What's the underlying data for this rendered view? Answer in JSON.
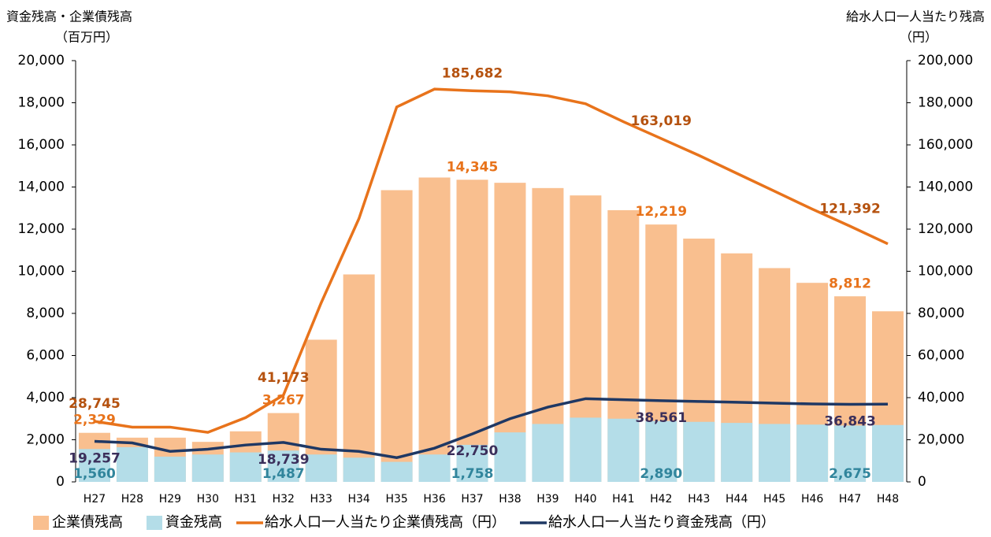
{
  "chart_data": {
    "type": "bar_line",
    "ylabel": "資金残高・企業債残高",
    "yunit": "（百万円）",
    "y2label": "給水人口一人当たり残高",
    "y2unit": "（円）",
    "categories": [
      "H27",
      "H28",
      "H29",
      "H30",
      "H31",
      "H32",
      "H33",
      "H34",
      "H35",
      "H36",
      "H37",
      "H38",
      "H39",
      "H40",
      "H41",
      "H42",
      "H43",
      "H44",
      "H45",
      "H46",
      "H47",
      "H48"
    ],
    "ylim": [
      0,
      20000
    ],
    "yticks": [
      0,
      {
        "value": 2000,
        "label": "2,000"
      },
      {
        "value": 4000,
        "label": "4,000"
      },
      {
        "value": 6000,
        "label": "6,000"
      },
      {
        "value": 8000,
        "label": "8,000"
      },
      {
        "value": 10000,
        "label": "10,000"
      },
      {
        "value": 12000,
        "label": "12,000"
      },
      {
        "value": 14000,
        "label": "14,000"
      },
      {
        "value": 16000,
        "label": "16,000"
      },
      {
        "value": 18000,
        "label": "18,000"
      },
      {
        "value": 20000,
        "label": "20,000"
      }
    ],
    "y2lim": [
      0,
      200000
    ],
    "y2ticks": [
      0,
      {
        "value": 20000,
        "label": "20,000"
      },
      {
        "value": 40000,
        "label": "40,000"
      },
      {
        "value": 60000,
        "label": "60,000"
      },
      {
        "value": 80000,
        "label": "80,000"
      },
      {
        "value": 100000,
        "label": "100,000"
      },
      {
        "value": 120000,
        "label": "120,000"
      },
      {
        "value": 140000,
        "label": "140,000"
      },
      {
        "value": 160000,
        "label": "160,000"
      },
      {
        "value": 180000,
        "label": "180,000"
      },
      {
        "value": 200000,
        "label": "200,000"
      }
    ],
    "series": [
      {
        "name": "企業債残高",
        "kind": "bar",
        "color": "#f9bf8f",
        "label_color": "#e8731b",
        "values": [
          2329,
          2100,
          2100,
          1900,
          2400,
          3267,
          6750,
          9850,
          13850,
          14450,
          14345,
          14200,
          13950,
          13600,
          12900,
          12219,
          11550,
          10850,
          10150,
          9450,
          8812,
          8100
        ],
        "value_labels": [
          "2,329",
          null,
          null,
          null,
          null,
          "3,267",
          null,
          null,
          null,
          null,
          "14,345",
          null,
          null,
          null,
          null,
          "12,219",
          null,
          null,
          null,
          null,
          "8,812",
          null
        ]
      },
      {
        "name": "資金残高",
        "kind": "bar",
        "color": "#b4dde8",
        "label_color": "#31859c",
        "values": [
          1560,
          1650,
          1200,
          1300,
          1400,
          1487,
          1300,
          1150,
          950,
          1300,
          1758,
          2350,
          2750,
          3050,
          3000,
          2890,
          2850,
          2800,
          2750,
          2720,
          2675,
          2700
        ],
        "value_labels": [
          "1,560",
          null,
          null,
          null,
          null,
          "1,487",
          null,
          null,
          null,
          null,
          "1,758",
          null,
          null,
          null,
          null,
          "2,890",
          null,
          null,
          null,
          null,
          "2,675",
          null
        ]
      },
      {
        "name": "給水人口一人当たり企業債残高（円）",
        "kind": "line",
        "axis": "y2",
        "color": "#e8731b",
        "label_color": "#b5520f",
        "values": [
          28745,
          26000,
          26000,
          23500,
          30500,
          41173,
          85000,
          125000,
          178000,
          186500,
          185682,
          185200,
          183300,
          179500,
          171000,
          163019,
          155000,
          146500,
          138000,
          129500,
          121392,
          113000
        ],
        "value_labels": [
          "28,745",
          null,
          null,
          null,
          null,
          "41,173",
          null,
          null,
          null,
          null,
          "185,682",
          null,
          null,
          null,
          null,
          "163,019",
          null,
          null,
          null,
          null,
          "121,392",
          null
        ]
      },
      {
        "name": "給水人口一人当たり資金残高（円）",
        "kind": "line",
        "axis": "y2",
        "color": "#1f3864",
        "label_color": "#3b2f5b",
        "values": [
          19257,
          18500,
          14500,
          15500,
          17500,
          18739,
          15500,
          14500,
          11500,
          16000,
          22750,
          30000,
          35500,
          39500,
          39000,
          38561,
          38200,
          37800,
          37400,
          37000,
          36843,
          36900
        ],
        "value_labels": [
          "19,257",
          null,
          null,
          null,
          null,
          "18,739",
          null,
          null,
          null,
          null,
          "22,750",
          null,
          null,
          null,
          null,
          "38,561",
          null,
          null,
          null,
          null,
          "36,843",
          null
        ]
      }
    ]
  }
}
